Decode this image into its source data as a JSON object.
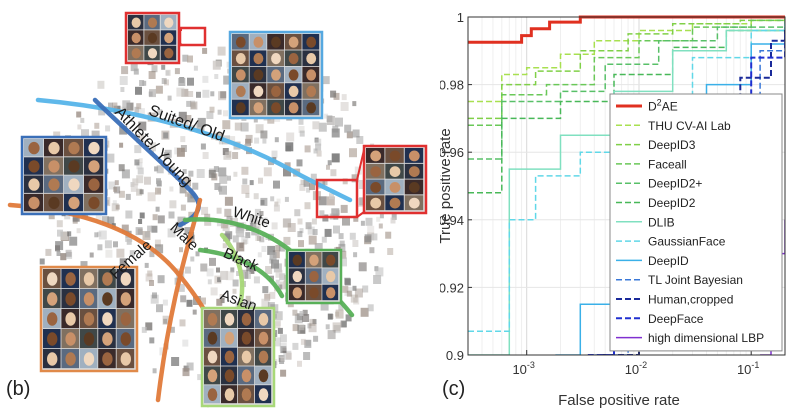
{
  "figure": {
    "panel_b_label": "(b)",
    "panel_c_label": "(c)"
  },
  "embedding": {
    "curve_labels": [
      {
        "text": "Suited/ Old",
        "color": "#56b4e9"
      },
      {
        "text": "Athlete/ Young",
        "color": "#3a6fb8"
      },
      {
        "text": "Male",
        "color": "#e07a3a"
      },
      {
        "text": "Female",
        "color": "#e07a3a"
      },
      {
        "text": "White",
        "color": "#58b058"
      },
      {
        "text": "Black",
        "color": "#58b058"
      },
      {
        "text": "Asian",
        "color": "#a8d878"
      }
    ],
    "cluster_frames": [
      {
        "name": "top-small",
        "color": "#e03030"
      },
      {
        "name": "suited-old",
        "color": "#56a8e0"
      },
      {
        "name": "athlete-young",
        "color": "#3a6fb8"
      },
      {
        "name": "right-red",
        "color": "#e03030"
      },
      {
        "name": "female",
        "color": "#e08a4a"
      },
      {
        "name": "black",
        "color": "#58b058"
      },
      {
        "name": "asian",
        "color": "#a8d878"
      }
    ]
  },
  "chart_data": {
    "type": "line",
    "title": "",
    "xlabel": "False positive rate",
    "ylabel": "True positive rate",
    "xscale": "log",
    "xlim": [
      0.0003,
      0.2
    ],
    "ylim": [
      0.9,
      1.0
    ],
    "x_ticks": [
      {
        "value": 0.001,
        "base": "10",
        "exp": "-3"
      },
      {
        "value": 0.01,
        "base": "10",
        "exp": "-2"
      },
      {
        "value": 0.1,
        "base": "10",
        "exp": "-1"
      }
    ],
    "y_ticks": [
      {
        "value": 0.9,
        "label": "0.9"
      },
      {
        "value": 0.92,
        "label": "0.92"
      },
      {
        "value": 0.94,
        "label": "0.94"
      },
      {
        "value": 0.96,
        "label": "0.96"
      },
      {
        "value": 0.98,
        "label": "0.98"
      },
      {
        "value": 1.0,
        "label": "1"
      }
    ],
    "grid": true,
    "legend_position": "right",
    "series": [
      {
        "name": "D2AE",
        "label_base": "D",
        "label_sup": "2",
        "label_tail": "AE",
        "color": "#e03020",
        "dash": "solid",
        "width": 3,
        "points": [
          [
            0.0003,
            0.9925
          ],
          [
            0.0009,
            0.9945
          ],
          [
            0.0011,
            0.9965
          ],
          [
            0.0016,
            0.9985
          ],
          [
            0.003,
            1.0
          ],
          [
            0.2,
            1.0
          ]
        ]
      },
      {
        "name": "THU CV-AI Lab",
        "color": "#a8e050",
        "dash": "dash",
        "width": 1.5,
        "points": [
          [
            0.0003,
            0.975
          ],
          [
            0.0006,
            0.9755
          ],
          [
            0.0006,
            0.983
          ],
          [
            0.001,
            0.985
          ],
          [
            0.002,
            0.989
          ],
          [
            0.004,
            0.993
          ],
          [
            0.01,
            0.996
          ],
          [
            0.03,
            0.998
          ],
          [
            0.1,
            0.999
          ],
          [
            0.2,
            0.9995
          ]
        ]
      },
      {
        "name": "DeepID3",
        "color": "#80d048",
        "dash": "dash",
        "width": 1.5,
        "points": [
          [
            0.0003,
            0.97
          ],
          [
            0.0006,
            0.9705
          ],
          [
            0.0006,
            0.98
          ],
          [
            0.0012,
            0.984
          ],
          [
            0.003,
            0.99
          ],
          [
            0.008,
            0.995
          ],
          [
            0.02,
            0.998
          ],
          [
            0.08,
            0.999
          ],
          [
            0.2,
            0.9995
          ]
        ]
      },
      {
        "name": "Faceall",
        "color": "#6ac858",
        "dash": "dash",
        "width": 1.5,
        "points": [
          [
            0.0003,
            0.968
          ],
          [
            0.0006,
            0.969
          ],
          [
            0.0006,
            0.977
          ],
          [
            0.0015,
            0.98
          ],
          [
            0.004,
            0.988
          ],
          [
            0.01,
            0.993
          ],
          [
            0.03,
            0.997
          ],
          [
            0.1,
            0.999
          ],
          [
            0.2,
            0.9995
          ]
        ]
      },
      {
        "name": "DeepID2+",
        "color": "#58c068",
        "dash": "dash",
        "width": 1.5,
        "points": [
          [
            0.0003,
            0.958
          ],
          [
            0.0006,
            0.959
          ],
          [
            0.0006,
            0.975
          ],
          [
            0.002,
            0.978
          ],
          [
            0.005,
            0.986
          ],
          [
            0.015,
            0.993
          ],
          [
            0.05,
            0.997
          ],
          [
            0.2,
            0.999
          ]
        ]
      },
      {
        "name": "DeepID2",
        "color": "#48b858",
        "dash": "dash",
        "width": 1.5,
        "points": [
          [
            0.0003,
            0.948
          ],
          [
            0.0006,
            0.949
          ],
          [
            0.0006,
            0.97
          ],
          [
            0.002,
            0.975
          ],
          [
            0.006,
            0.983
          ],
          [
            0.02,
            0.991
          ],
          [
            0.06,
            0.996
          ],
          [
            0.2,
            0.999
          ]
        ]
      },
      {
        "name": "DLIB",
        "color": "#80e0c0",
        "dash": "solid",
        "width": 1.5,
        "points": [
          [
            0.0003,
            0.9
          ],
          [
            0.0006,
            0.9
          ],
          [
            0.0007,
            0.955
          ],
          [
            0.002,
            0.965
          ],
          [
            0.006,
            0.978
          ],
          [
            0.02,
            0.99
          ],
          [
            0.06,
            0.996
          ],
          [
            0.2,
            0.999
          ]
        ]
      },
      {
        "name": "GaussianFace",
        "color": "#60d8e8",
        "dash": "dash",
        "width": 1.5,
        "points": [
          [
            0.0003,
            0.907
          ],
          [
            0.0006,
            0.907
          ],
          [
            0.0007,
            0.94
          ],
          [
            0.0012,
            0.953
          ],
          [
            0.003,
            0.96
          ],
          [
            0.008,
            0.973
          ],
          [
            0.03,
            0.988
          ],
          [
            0.1,
            0.996
          ],
          [
            0.2,
            0.998
          ]
        ]
      },
      {
        "name": "DeepID",
        "color": "#3ab0e8",
        "dash": "solid",
        "width": 1.5,
        "points": [
          [
            0.0018,
            0.9
          ],
          [
            0.003,
            0.915
          ],
          [
            0.006,
            0.935
          ],
          [
            0.015,
            0.96
          ],
          [
            0.04,
            0.98
          ],
          [
            0.1,
            0.992
          ],
          [
            0.2,
            0.997
          ]
        ]
      },
      {
        "name": "TL Joint Bayesian",
        "color": "#3a78d8",
        "dash": "dash",
        "width": 1.5,
        "points": [
          [
            0.004,
            0.9
          ],
          [
            0.008,
            0.925
          ],
          [
            0.02,
            0.955
          ],
          [
            0.05,
            0.975
          ],
          [
            0.12,
            0.99
          ],
          [
            0.2,
            0.996
          ]
        ]
      },
      {
        "name": "Human,cropped",
        "color": "#1a2a9a",
        "dash": "dash",
        "width": 2,
        "points": [
          [
            0.0045,
            0.9
          ],
          [
            0.01,
            0.93
          ],
          [
            0.03,
            0.96
          ],
          [
            0.08,
            0.982
          ],
          [
            0.15,
            0.993
          ],
          [
            0.2,
            0.997
          ]
        ]
      },
      {
        "name": "DeepFace",
        "color": "#2030d0",
        "dash": "dash",
        "width": 2,
        "points": [
          [
            0.0035,
            0.9
          ],
          [
            0.006,
            0.915
          ],
          [
            0.015,
            0.945
          ],
          [
            0.04,
            0.97
          ],
          [
            0.1,
            0.988
          ],
          [
            0.2,
            0.995
          ]
        ]
      },
      {
        "name": "high dimensional LBP",
        "color": "#8030d0",
        "dash": "solid",
        "width": 1.5,
        "points": [
          [
            0.12,
            0.9
          ],
          [
            0.15,
            0.915
          ],
          [
            0.18,
            0.93
          ],
          [
            0.2,
            0.94
          ]
        ]
      }
    ]
  }
}
